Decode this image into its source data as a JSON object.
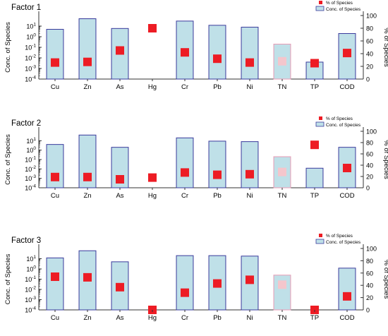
{
  "chart_data": [
    {
      "type": "bar",
      "title": "Factor 1",
      "categories": [
        "Cu",
        "Zn",
        "As",
        "Hg",
        "Cr",
        "Pb",
        "Ni",
        "TN",
        "TP",
        "COD"
      ],
      "ylabel": "Conc. of Species",
      "y2label": "% of Species",
      "y_scale": "log",
      "ylim": [
        0.0001,
        100
      ],
      "y2lim": [
        0,
        100
      ],
      "yticks": [
        "10<sup>-4</sup>",
        "10<sup>-3</sup>",
        "10<sup>-2</sup>",
        "10<sup>-1</sup>",
        "10<sup>0</sup>",
        "10<sup>1</sup>"
      ],
      "y2ticks": [
        "0",
        "20",
        "40",
        "60",
        "80",
        "100"
      ],
      "legend": [
        "% of Species",
        "Conc. of Species"
      ],
      "legend_position": "top-right",
      "series": [
        {
          "name": "Conc. of Species",
          "kind": "bar",
          "values": [
            5,
            50,
            6,
            null,
            30,
            12,
            8,
            0.2,
            0.004,
            2
          ]
        },
        {
          "name": "% of Species",
          "kind": "square",
          "values": [
            26,
            27,
            45,
            80,
            42,
            32,
            26,
            28,
            25,
            41
          ]
        }
      ]
    },
    {
      "type": "bar",
      "title": "Factor 2",
      "categories": [
        "Cu",
        "Zn",
        "As",
        "Hg",
        "Cr",
        "Pb",
        "Ni",
        "TN",
        "TP",
        "COD"
      ],
      "ylabel": "Conc. of Species",
      "y2label": "% of Species",
      "y_scale": "log",
      "ylim": [
        0.0001,
        100
      ],
      "y2lim": [
        0,
        100
      ],
      "yticks": [
        "10<sup>-4</sup>",
        "10<sup>-3</sup>",
        "10<sup>-2</sup>",
        "10<sup>-1</sup>",
        "10<sup>0</sup>",
        "10<sup>1</sup>"
      ],
      "y2ticks": [
        "0",
        "20",
        "40",
        "60",
        "80",
        "100"
      ],
      "legend": [
        "% of Species",
        "Conc. of Species"
      ],
      "legend_position": "top-right",
      "series": [
        {
          "name": "Conc. of Species",
          "kind": "bar",
          "values": [
            4,
            40,
            2,
            null,
            20,
            9,
            8,
            0.2,
            0.012,
            2
          ]
        },
        {
          "name": "% of Species",
          "kind": "square",
          "values": [
            19,
            19,
            15,
            18,
            27,
            23,
            24,
            28,
            76,
            35
          ]
        }
      ]
    },
    {
      "type": "bar",
      "title": "Factor 3",
      "categories": [
        "Cu",
        "Zn",
        "As",
        "Hg",
        "Cr",
        "Pb",
        "Ni",
        "TN",
        "TP",
        "COD"
      ],
      "ylabel": "Conc. of Species",
      "y2label": "% of Species",
      "y_scale": "log",
      "ylim": [
        0.0001,
        100
      ],
      "y2lim": [
        0,
        100
      ],
      "yticks": [
        "10<sup>-4</sup>",
        "10<sup>-3</sup>",
        "10<sup>-2</sup>",
        "10<sup>-1</sup>",
        "10<sup>0</sup>",
        "10<sup>1</sup>"
      ],
      "y2ticks": [
        "0",
        "20",
        "40",
        "60",
        "80",
        "100"
      ],
      "legend": [
        "% of Species",
        "Conc. of Species"
      ],
      "legend_position": "top-right",
      "series": [
        {
          "name": "Conc. of Species",
          "kind": "bar",
          "values": [
            12,
            60,
            5,
            null,
            20,
            20,
            18,
            0.25,
            null,
            1.2
          ]
        },
        {
          "name": "% of Species",
          "kind": "square",
          "values": [
            54,
            53,
            37,
            0,
            28,
            43,
            49,
            41,
            0,
            22
          ]
        }
      ]
    }
  ],
  "colors": {
    "bar_fill": "#bfe0e8",
    "bar_edge": "#3a3a9c",
    "bar_edge_tn": "#e89ab4",
    "marker": "#ed1c24",
    "marker_tn": "#f4c6cc",
    "axis": "#333333"
  }
}
